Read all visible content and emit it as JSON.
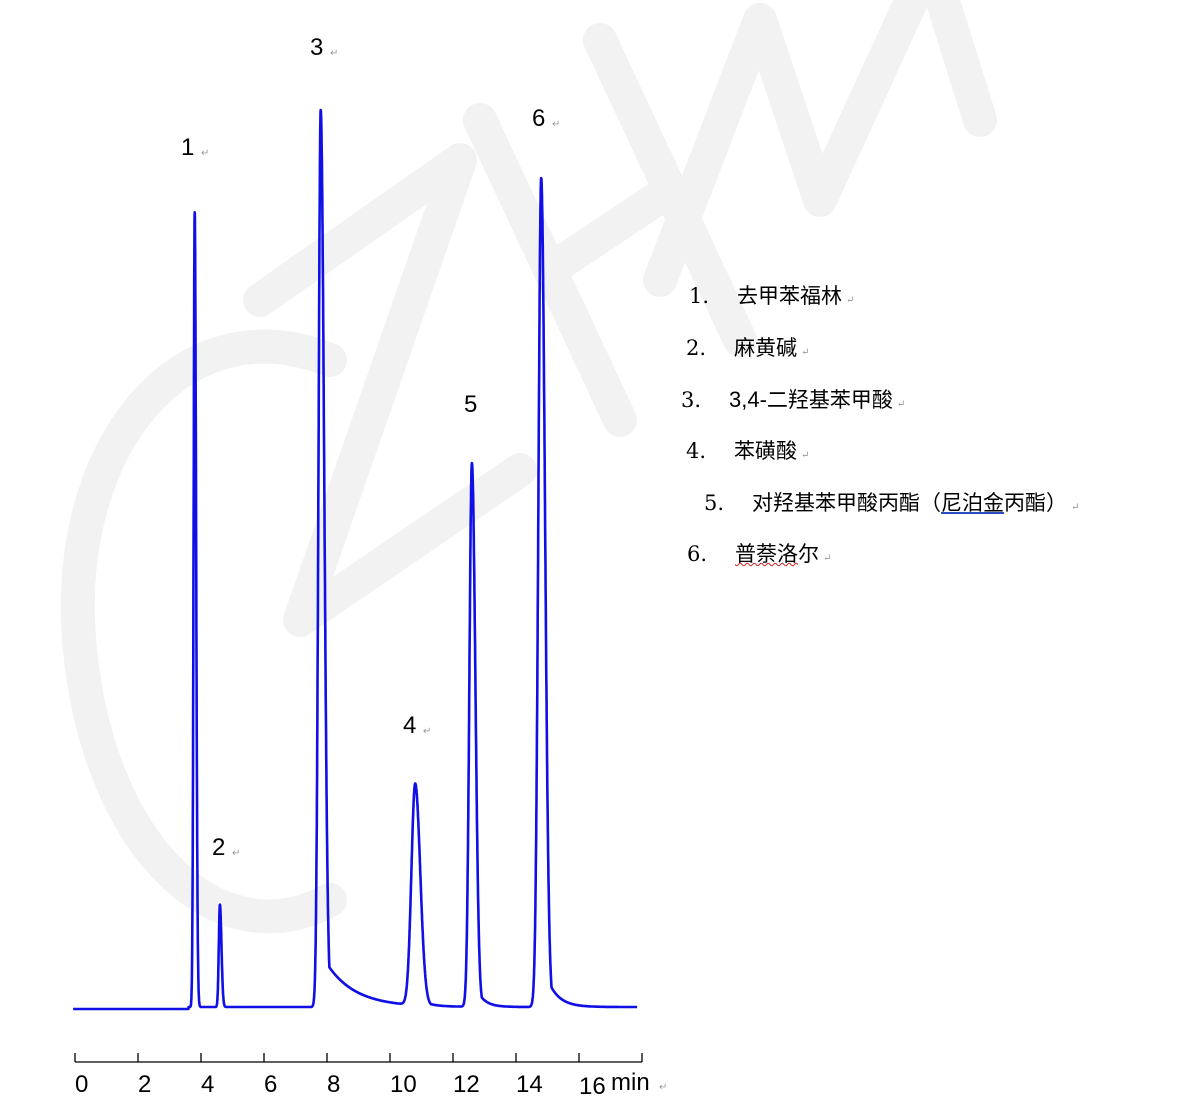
{
  "watermark": "CZHM",
  "colors": {
    "trace": "#1010e6",
    "axis": "#000000",
    "watermark": "#f2f2f2"
  },
  "chart_data": {
    "type": "line",
    "title": "",
    "xlabel": "min",
    "ylabel": "",
    "xlim": [
      0,
      18
    ],
    "x_ticks": [
      0,
      2,
      4,
      6,
      8,
      10,
      12,
      14,
      16,
      18
    ],
    "x_tick_labels": [
      "0",
      "2",
      "4",
      "6",
      "8",
      "10",
      "12",
      "14",
      "16",
      ""
    ],
    "y_axis_shown": false,
    "grid": false,
    "peaks": [
      {
        "label": "1",
        "retention_time_min": 3.8,
        "relative_height": 88.6
      },
      {
        "label": "2",
        "retention_time_min": 4.6,
        "relative_height": 11.4
      },
      {
        "label": "3",
        "retention_time_min": 7.8,
        "relative_height": 100
      },
      {
        "label": "4",
        "retention_time_min": 10.8,
        "relative_height": 24.7
      },
      {
        "label": "5",
        "retention_time_min": 12.6,
        "relative_height": 60.6
      },
      {
        "label": "6",
        "retention_time_min": 14.8,
        "relative_height": 92.4
      }
    ]
  },
  "legend": {
    "items": [
      {
        "num": "1.",
        "name": "去甲苯福林"
      },
      {
        "num": "2.",
        "name": "麻黄碱"
      },
      {
        "num": "3.",
        "name_prefix": "3,4-",
        "name": "二羟基苯甲酸"
      },
      {
        "num": "4.",
        "name": "苯磺酸"
      },
      {
        "num": "5.",
        "name": "对羟基苯甲酸丙酯（",
        "name_underlined": "尼泊金",
        "name_suffix": "丙酯）"
      },
      {
        "num": "6.",
        "name_underlined": "普萘洛",
        "name_suffix": "尔"
      }
    ]
  }
}
